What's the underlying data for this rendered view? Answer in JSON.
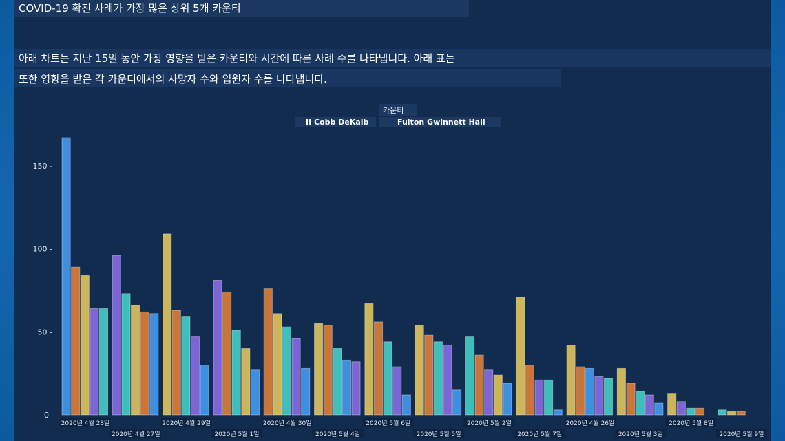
{
  "header": {
    "title": "COVID-19 확진 사례가 가장 많은 상위 5개 카운티",
    "description_line1": "아래 차트는 지난 15일 동안 가장 영향을 받은 카운티와 시간에 따른 사례 수를 나타냅니다. 아래 표는",
    "description_line2": "또한 영향을 받은 각 카운티에서의 사망자 수와 입원자 수를 나타냅니다."
  },
  "legend": {
    "title": "카운티",
    "line_a": "II Cobb DeKalb",
    "line_b": "Fulton Gwinnett Hall"
  },
  "colors": {
    "blue": "#3e8fe0",
    "orange": "#c8763a",
    "yellow": "#cdb55a",
    "purple": "#7c66d6",
    "teal": "#3fbfbb",
    "axis_text": "#dfe6f0"
  },
  "chart_data": {
    "type": "bar",
    "ylim": [
      0,
      170
    ],
    "yticks": [
      0,
      50,
      100,
      150
    ],
    "categories": [
      "2020년 4월 28일",
      "2020년 4월 27일",
      "2020년 4월 29일",
      "2020년 5월 1일",
      "2020년 4월 30일",
      "2020년 5월 4일",
      "2020년 5월 6일",
      "2020년 5월 5일",
      "2020년 5월 2일",
      "2020년 5월 7일",
      "2020년 4월 26일",
      "2020년 5월 3일",
      "2020년 5월 8일",
      "2020년 5월 9일"
    ],
    "groups": [
      {
        "bars": [
          {
            "value": 167,
            "color": "blue"
          },
          {
            "value": 89,
            "color": "orange"
          },
          {
            "value": 84,
            "color": "yellow"
          },
          {
            "value": 64,
            "color": "purple"
          },
          {
            "value": 64,
            "color": "teal"
          }
        ]
      },
      {
        "bars": [
          {
            "value": 96,
            "color": "purple"
          },
          {
            "value": 73,
            "color": "teal"
          },
          {
            "value": 66,
            "color": "yellow"
          },
          {
            "value": 62,
            "color": "orange"
          },
          {
            "value": 61,
            "color": "blue"
          }
        ]
      },
      {
        "bars": [
          {
            "value": 109,
            "color": "yellow"
          },
          {
            "value": 63,
            "color": "orange"
          },
          {
            "value": 59,
            "color": "teal"
          },
          {
            "value": 47,
            "color": "purple"
          },
          {
            "value": 30,
            "color": "blue"
          }
        ]
      },
      {
        "bars": [
          {
            "value": 81,
            "color": "purple"
          },
          {
            "value": 74,
            "color": "orange"
          },
          {
            "value": 51,
            "color": "teal"
          },
          {
            "value": 40,
            "color": "yellow"
          },
          {
            "value": 27,
            "color": "blue"
          }
        ]
      },
      {
        "bars": [
          {
            "value": 76,
            "color": "orange"
          },
          {
            "value": 61,
            "color": "yellow"
          },
          {
            "value": 53,
            "color": "teal"
          },
          {
            "value": 46,
            "color": "purple"
          },
          {
            "value": 28,
            "color": "blue"
          }
        ]
      },
      {
        "bars": [
          {
            "value": 55,
            "color": "yellow"
          },
          {
            "value": 54,
            "color": "orange"
          },
          {
            "value": 40,
            "color": "teal"
          },
          {
            "value": 33,
            "color": "blue"
          },
          {
            "value": 32,
            "color": "purple"
          }
        ]
      },
      {
        "bars": [
          {
            "value": 67,
            "color": "yellow"
          },
          {
            "value": 56,
            "color": "orange"
          },
          {
            "value": 44,
            "color": "teal"
          },
          {
            "value": 29,
            "color": "purple"
          },
          {
            "value": 12,
            "color": "blue"
          }
        ]
      },
      {
        "bars": [
          {
            "value": 54,
            "color": "yellow"
          },
          {
            "value": 48,
            "color": "orange"
          },
          {
            "value": 44,
            "color": "teal"
          },
          {
            "value": 42,
            "color": "purple"
          },
          {
            "value": 15,
            "color": "blue"
          }
        ]
      },
      {
        "bars": [
          {
            "value": 47,
            "color": "teal"
          },
          {
            "value": 36,
            "color": "orange"
          },
          {
            "value": 27,
            "color": "purple"
          },
          {
            "value": 24,
            "color": "yellow"
          },
          {
            "value": 19,
            "color": "blue"
          }
        ]
      },
      {
        "bars": [
          {
            "value": 71,
            "color": "yellow"
          },
          {
            "value": 30,
            "color": "orange"
          },
          {
            "value": 21,
            "color": "purple"
          },
          {
            "value": 21,
            "color": "teal"
          },
          {
            "value": 3,
            "color": "blue"
          }
        ]
      },
      {
        "bars": [
          {
            "value": 42,
            "color": "yellow"
          },
          {
            "value": 29,
            "color": "orange"
          },
          {
            "value": 28,
            "color": "blue"
          },
          {
            "value": 23,
            "color": "purple"
          },
          {
            "value": 22,
            "color": "teal"
          }
        ]
      },
      {
        "bars": [
          {
            "value": 28,
            "color": "yellow"
          },
          {
            "value": 19,
            "color": "orange"
          },
          {
            "value": 14,
            "color": "teal"
          },
          {
            "value": 12,
            "color": "purple"
          },
          {
            "value": 7,
            "color": "blue"
          }
        ]
      },
      {
        "bars": [
          {
            "value": 13,
            "color": "yellow"
          },
          {
            "value": 8,
            "color": "purple"
          },
          {
            "value": 4,
            "color": "teal"
          },
          {
            "value": 4,
            "color": "orange"
          }
        ]
      },
      {
        "bars": [
          {
            "value": 3,
            "color": "teal"
          },
          {
            "value": 2,
            "color": "yellow"
          },
          {
            "value": 2,
            "color": "orange"
          }
        ]
      }
    ]
  }
}
